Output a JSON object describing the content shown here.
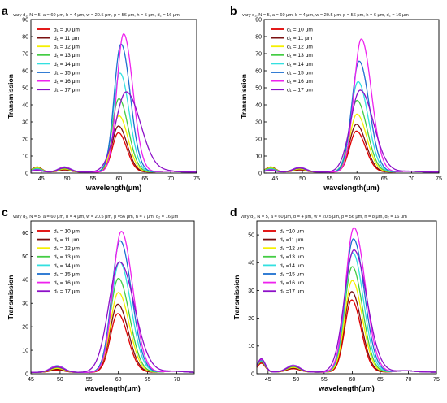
{
  "chart_data": [
    {
      "type": "line",
      "panel_letter": "a",
      "title": "vary d₁, N = 5, a = 60 μm, b = 4 μm, w = 20.5 μm, p = 56 μm, h = 5 μm, d₂ = 16 μm",
      "xlabel": "wavelength(μm)",
      "ylabel": "Transmission",
      "xlim": [
        43,
        75
      ],
      "ylim": [
        0,
        90
      ],
      "xticks": [
        45,
        50,
        55,
        60,
        65,
        70,
        75
      ],
      "yticks": [
        0,
        10,
        20,
        30,
        40,
        50,
        60,
        70,
        80,
        90
      ],
      "grid": false,
      "legend_position": "top-left",
      "series": [
        {
          "name": "d₁ = 10 μm",
          "color": "#e00000",
          "peak_x": 59.9,
          "peak_y": 23,
          "width": 1.4,
          "side": [
            {
              "x": 44.2,
              "y": 2.8,
              "w": 0.9
            },
            {
              "x": 49.5,
              "y": 1.2,
              "w": 1.2
            }
          ]
        },
        {
          "name": "d₁ = 11 μm",
          "color": "#7a1010",
          "peak_x": 59.9,
          "peak_y": 27,
          "width": 1.45,
          "side": [
            {
              "x": 44.2,
              "y": 3.0,
              "w": 0.9
            },
            {
              "x": 49.5,
              "y": 1.4,
              "w": 1.2
            }
          ]
        },
        {
          "name": "d₁ = 12 μm",
          "color": "#f5f000",
          "peak_x": 60.0,
          "peak_y": 33,
          "width": 1.5,
          "side": [
            {
              "x": 44.2,
              "y": 2.6,
              "w": 0.9
            },
            {
              "x": 49.5,
              "y": 1.8,
              "w": 1.2
            }
          ]
        },
        {
          "name": "d₁ = 13 μm",
          "color": "#44cc44",
          "peak_x": 60.0,
          "peak_y": 43,
          "width": 1.55,
          "side": [
            {
              "x": 44.2,
              "y": 2.2,
              "w": 0.9
            },
            {
              "x": 49.5,
              "y": 2.2,
              "w": 1.2
            }
          ]
        },
        {
          "name": "d₁ = 14 μm",
          "color": "#33e0e0",
          "peak_x": 60.2,
          "peak_y": 58,
          "width": 1.55,
          "side": [
            {
              "x": 44.2,
              "y": 1.8,
              "w": 0.9
            },
            {
              "x": 49.5,
              "y": 2.8,
              "w": 1.2
            }
          ]
        },
        {
          "name": "d₁ = 15 μm",
          "color": "#1e6fd0",
          "peak_x": 60.4,
          "peak_y": 75,
          "width": 1.55,
          "side": [
            {
              "x": 44.2,
              "y": 1.5,
              "w": 0.9
            },
            {
              "x": 49.5,
              "y": 3.0,
              "w": 1.2
            }
          ]
        },
        {
          "name": "d₁ = 16 μm",
          "color": "#ee22ee",
          "peak_x": 60.9,
          "peak_y": 81,
          "width": 1.55,
          "side": [
            {
              "x": 44.2,
              "y": 1.3,
              "w": 0.9
            },
            {
              "x": 49.5,
              "y": 2.8,
              "w": 1.2
            }
          ]
        },
        {
          "name": "d₁ = 17 μm",
          "color": "#8d10c8",
          "peak_x": 61.4,
          "peak_y": 47,
          "width": 2.4,
          "side": [
            {
              "x": 44.2,
              "y": 1.0,
              "w": 0.9
            },
            {
              "x": 49.5,
              "y": 2.5,
              "w": 1.2
            }
          ]
        }
      ]
    },
    {
      "type": "line",
      "panel_letter": "b",
      "title": "vary d₁, N = 5, a = 60 μm, b = 4 μm, w = 20.5 μm, p = 56 μm, h = 6 μm, d₂ = 16 μm",
      "xlabel": "wavelength(μm)",
      "ylabel": "Transmission",
      "xlim": [
        43,
        75
      ],
      "ylim": [
        0,
        90
      ],
      "xticks": [
        45,
        50,
        55,
        60,
        65,
        70,
        75
      ],
      "yticks": [
        0,
        10,
        20,
        30,
        40,
        50,
        60,
        70,
        80,
        90
      ],
      "grid": false,
      "legend_position": "top-left",
      "series": [
        {
          "name": "d₁ = 10 μm",
          "color": "#e00000",
          "peak_x": 59.9,
          "peak_y": 24,
          "width": 1.45,
          "side": [
            {
              "x": 44.2,
              "y": 2.8,
              "w": 0.9
            },
            {
              "x": 49.5,
              "y": 1.2,
              "w": 1.2
            }
          ]
        },
        {
          "name": "d₁ = 11 μm",
          "color": "#7a1010",
          "peak_x": 59.9,
          "peak_y": 28,
          "width": 1.5,
          "side": [
            {
              "x": 44.2,
              "y": 3.0,
              "w": 0.9
            },
            {
              "x": 49.5,
              "y": 1.4,
              "w": 1.2
            }
          ]
        },
        {
          "name": "d₁ = 12 μm",
          "color": "#f5f000",
          "peak_x": 60.0,
          "peak_y": 34,
          "width": 1.55,
          "side": [
            {
              "x": 44.2,
              "y": 2.6,
              "w": 0.9
            },
            {
              "x": 49.5,
              "y": 1.8,
              "w": 1.2
            }
          ]
        },
        {
          "name": "d₁ = 13 μm",
          "color": "#44cc44",
          "peak_x": 60.0,
          "peak_y": 42,
          "width": 1.6,
          "side": [
            {
              "x": 44.2,
              "y": 2.2,
              "w": 0.9
            },
            {
              "x": 49.5,
              "y": 2.2,
              "w": 1.2
            }
          ]
        },
        {
          "name": "d₁ = 14 μm",
          "color": "#33e0e0",
          "peak_x": 60.2,
          "peak_y": 53,
          "width": 1.6,
          "side": [
            {
              "x": 44.2,
              "y": 1.8,
              "w": 0.9
            },
            {
              "x": 49.5,
              "y": 2.6,
              "w": 1.2
            }
          ]
        },
        {
          "name": "d₁ = 15 μm",
          "color": "#1e6fd0",
          "peak_x": 60.4,
          "peak_y": 65,
          "width": 1.6,
          "side": [
            {
              "x": 44.2,
              "y": 1.5,
              "w": 0.9
            },
            {
              "x": 49.5,
              "y": 2.8,
              "w": 1.2
            }
          ]
        },
        {
          "name": "d₁ = 16 μm",
          "color": "#ee22ee",
          "peak_x": 60.8,
          "peak_y": 78,
          "width": 1.6,
          "side": [
            {
              "x": 44.2,
              "y": 1.3,
              "w": 0.9
            },
            {
              "x": 49.5,
              "y": 2.6,
              "w": 1.2
            }
          ]
        },
        {
          "name": "d₁ = 17 μm",
          "color": "#8d10c8",
          "peak_x": 60.6,
          "peak_y": 48,
          "width": 2.1,
          "side": [
            {
              "x": 44.2,
              "y": 1.0,
              "w": 0.9
            },
            {
              "x": 49.5,
              "y": 2.4,
              "w": 1.2
            }
          ]
        }
      ]
    },
    {
      "type": "line",
      "panel_letter": "c",
      "title": "vary d₁, N = 5, a = 60 μm, b = 4 μm, w = 20.5 μm, p =56 μm, h = 7 μm, d₂ = 16 μm",
      "xlabel": "wavelength(μm)",
      "ylabel": "Transmission",
      "xlim": [
        45,
        73
      ],
      "ylim": [
        0,
        65
      ],
      "xticks": [
        45,
        50,
        55,
        60,
        65,
        70
      ],
      "yticks": [
        0,
        10,
        20,
        30,
        40,
        50,
        60
      ],
      "grid": false,
      "legend_position": "top-left",
      "series": [
        {
          "name": "d₁ = 10 μm",
          "color": "#e00000",
          "peak_x": 59.9,
          "peak_y": 25,
          "width": 1.5,
          "side": [
            {
              "x": 49.5,
              "y": 1.0,
              "w": 1.2
            }
          ]
        },
        {
          "name": "d₁ = 11 μm",
          "color": "#7a1010",
          "peak_x": 59.9,
          "peak_y": 29,
          "width": 1.55,
          "side": [
            {
              "x": 49.5,
              "y": 1.3,
              "w": 1.2
            }
          ]
        },
        {
          "name": "d₁ = 12 μm",
          "color": "#f5f000",
          "peak_x": 60.0,
          "peak_y": 34,
          "width": 1.6,
          "side": [
            {
              "x": 49.5,
              "y": 1.7,
              "w": 1.2
            }
          ]
        },
        {
          "name": "d₁ = 13 μm",
          "color": "#44cc44",
          "peak_x": 60.0,
          "peak_y": 40,
          "width": 1.65,
          "side": [
            {
              "x": 49.5,
              "y": 2.1,
              "w": 1.2
            }
          ]
        },
        {
          "name": "d₁ = 14 μm",
          "color": "#33e0e0",
          "peak_x": 60.2,
          "peak_y": 47,
          "width": 1.7,
          "side": [
            {
              "x": 49.5,
              "y": 2.5,
              "w": 1.2
            }
          ]
        },
        {
          "name": "d₁ = 15 μm",
          "color": "#1e6fd0",
          "peak_x": 60.3,
          "peak_y": 56,
          "width": 1.7,
          "side": [
            {
              "x": 49.5,
              "y": 2.8,
              "w": 1.2
            }
          ]
        },
        {
          "name": "d₁ = 16 μm",
          "color": "#ee22ee",
          "peak_x": 60.5,
          "peak_y": 60,
          "width": 1.7,
          "side": [
            {
              "x": 49.5,
              "y": 2.6,
              "w": 1.2
            }
          ]
        },
        {
          "name": "d₁ = 17 μm",
          "color": "#8d10c8",
          "peak_x": 60.2,
          "peak_y": 47,
          "width": 2.2,
          "side": [
            {
              "x": 49.5,
              "y": 2.3,
              "w": 1.2
            }
          ]
        }
      ]
    },
    {
      "type": "line",
      "panel_letter": "d",
      "title": "vary d₁, N = 5, a = 60 μm, b = 4 μm, w = 20.5 μm, p = 56 μm, h = 8 μm, d₂ = 16 μm",
      "xlabel": "wavelength(μm)",
      "ylabel": "Transmission",
      "xlim": [
        43,
        75
      ],
      "ylim": [
        0,
        55
      ],
      "xticks": [
        45,
        50,
        55,
        60,
        65,
        70,
        75
      ],
      "yticks": [
        0,
        10,
        20,
        30,
        40,
        50
      ],
      "grid": false,
      "legend_position": "top-left",
      "series": [
        {
          "name": "d₁ =10 μm",
          "color": "#e00000",
          "peak_x": 59.9,
          "peak_y": 26,
          "width": 1.45,
          "side": [
            {
              "x": 43.8,
              "y": 3.2,
              "w": 0.7
            },
            {
              "x": 49.5,
              "y": 1.2,
              "w": 1.2
            }
          ]
        },
        {
          "name": "d₁ =11 μm",
          "color": "#7a1010",
          "peak_x": 59.9,
          "peak_y": 29,
          "width": 1.5,
          "side": [
            {
              "x": 43.8,
              "y": 3.6,
              "w": 0.7
            },
            {
              "x": 49.5,
              "y": 1.4,
              "w": 1.2
            }
          ]
        },
        {
          "name": "d₁ =12 μm",
          "color": "#f5f000",
          "peak_x": 60.0,
          "peak_y": 33,
          "width": 1.55,
          "side": [
            {
              "x": 43.8,
              "y": 3.8,
              "w": 0.7
            },
            {
              "x": 49.5,
              "y": 1.7,
              "w": 1.2
            }
          ]
        },
        {
          "name": "d₁ =13 μm",
          "color": "#44cc44",
          "peak_x": 60.0,
          "peak_y": 38,
          "width": 1.6,
          "side": [
            {
              "x": 43.8,
              "y": 4.0,
              "w": 0.7
            },
            {
              "x": 49.5,
              "y": 2.0,
              "w": 1.2
            }
          ]
        },
        {
          "name": "d₁ =14 μm",
          "color": "#33e0e0",
          "peak_x": 60.1,
          "peak_y": 43,
          "width": 1.65,
          "side": [
            {
              "x": 43.8,
              "y": 4.2,
              "w": 0.7
            },
            {
              "x": 49.5,
              "y": 2.3,
              "w": 1.2
            }
          ]
        },
        {
          "name": "d₁ =15 μm",
          "color": "#1e6fd0",
          "peak_x": 60.2,
          "peak_y": 48,
          "width": 1.7,
          "side": [
            {
              "x": 43.8,
              "y": 4.4,
              "w": 0.7
            },
            {
              "x": 49.5,
              "y": 2.5,
              "w": 1.2
            }
          ]
        },
        {
          "name": "d₁ =16 μm",
          "color": "#ee22ee",
          "peak_x": 60.3,
          "peak_y": 52,
          "width": 1.75,
          "side": [
            {
              "x": 43.8,
              "y": 4.6,
              "w": 0.7
            },
            {
              "x": 49.5,
              "y": 2.4,
              "w": 1.2
            }
          ]
        },
        {
          "name": "d₁ =17 μm",
          "color": "#8d10c8",
          "peak_x": 60.3,
          "peak_y": 44,
          "width": 2.0,
          "side": [
            {
              "x": 43.8,
              "y": 4.8,
              "w": 0.7
            },
            {
              "x": 49.5,
              "y": 2.2,
              "w": 1.2
            }
          ]
        }
      ]
    }
  ]
}
